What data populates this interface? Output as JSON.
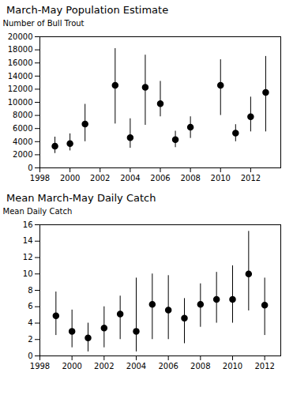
{
  "chart_data": [
    {
      "type": "scatter",
      "title": "March-May Population Estimate",
      "y_label": "Number of Bull Trout",
      "x": [
        1999,
        2000,
        2001,
        2003,
        2004,
        2005,
        2006,
        2007,
        2008,
        2010,
        2011,
        2012,
        2013
      ],
      "values": [
        3300,
        3700,
        6700,
        12600,
        4600,
        12300,
        9800,
        4300,
        6200,
        12600,
        5300,
        7800,
        11500
      ],
      "error_low": [
        2200,
        2600,
        4000,
        6700,
        3000,
        6500,
        7800,
        3100,
        4500,
        8000,
        4000,
        5500,
        5500
      ],
      "error_high": [
        4700,
        5200,
        9700,
        18200,
        7500,
        17200,
        13200,
        5600,
        7800,
        16500,
        6600,
        10800,
        17000
      ],
      "xlim": [
        1998,
        2014
      ],
      "ylim": [
        0,
        20000
      ],
      "xticks": [
        1998,
        2000,
        2002,
        2004,
        2006,
        2008,
        2010,
        2012
      ],
      "yticks": [
        0,
        2000,
        4000,
        6000,
        8000,
        10000,
        12000,
        14000,
        16000,
        18000,
        20000
      ],
      "color": "black",
      "marker": "circle",
      "grid": false
    },
    {
      "type": "scatter",
      "title": "Mean March-May Daily Catch",
      "y_label": "Mean Daily Catch",
      "x": [
        1999,
        2000,
        2001,
        2002,
        2003,
        2004,
        2005,
        2006,
        2007,
        2008,
        2009,
        2010,
        2011,
        2012
      ],
      "values": [
        4.9,
        3.0,
        2.2,
        3.4,
        5.1,
        3.0,
        6.3,
        5.6,
        4.6,
        6.3,
        6.9,
        6.9,
        10.0,
        6.2
      ],
      "error_low": [
        2.5,
        1.0,
        0.5,
        1.0,
        2.0,
        0.5,
        2.0,
        2.0,
        1.5,
        3.5,
        4.0,
        4.0,
        5.5,
        2.5
      ],
      "error_high": [
        7.8,
        5.6,
        4.0,
        6.0,
        7.3,
        9.5,
        10.0,
        9.8,
        7.0,
        8.8,
        10.2,
        11.0,
        15.2,
        9.5
      ],
      "xlim": [
        1998,
        2013
      ],
      "ylim": [
        0,
        16
      ],
      "xticks": [
        1998,
        2000,
        2002,
        2004,
        2006,
        2008,
        2010,
        2012
      ],
      "yticks": [
        0,
        2,
        4,
        6,
        8,
        10,
        12,
        14,
        16
      ],
      "color": "black",
      "marker": "circle",
      "grid": false
    }
  ]
}
